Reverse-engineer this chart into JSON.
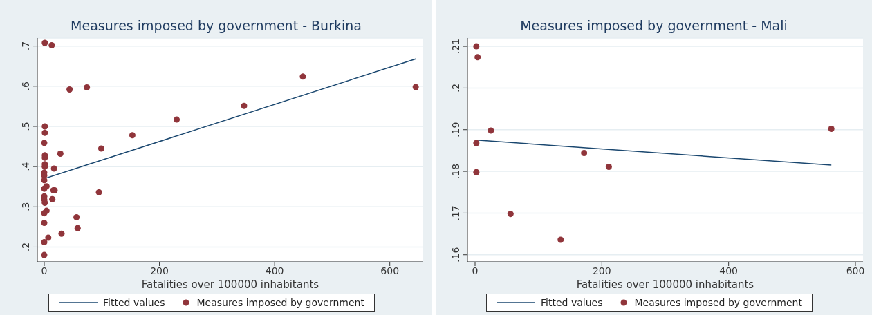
{
  "chart_data": [
    {
      "type": "scatter",
      "title": "Measures imposed by government - Burkina",
      "xlabel": "Fatalities over 100000 inhabitants",
      "xlim": [
        -12,
        658
      ],
      "xticks": [
        0,
        200,
        400,
        600
      ],
      "ylim": [
        0.163,
        0.72
      ],
      "yticks": [
        {
          "value": 0.2,
          "label": ".2"
        },
        {
          "value": 0.3,
          "label": ".3"
        },
        {
          "value": 0.4,
          "label": ".4"
        },
        {
          "value": 0.5,
          "label": ".5"
        },
        {
          "value": 0.6,
          "label": ".6"
        },
        {
          "value": 0.7,
          "label": ".7"
        }
      ],
      "grid": "y",
      "legend": "bottom",
      "series": [
        {
          "name": "Fitted values",
          "type": "line",
          "color": "#1a476f",
          "marker": "none",
          "x": [
            0,
            645
          ],
          "values": [
            0.37,
            0.668
          ]
        },
        {
          "name": "Measures imposed by government",
          "color": "#90353b",
          "marker": "circle",
          "x": [
            1,
            13,
            44,
            74,
            1,
            1,
            0,
            28,
            1,
            1,
            1,
            1,
            17,
            0,
            0,
            0,
            4,
            0,
            16,
            18,
            0,
            0,
            14,
            1,
            4,
            0,
            95,
            0,
            56,
            58,
            30,
            7,
            0,
            0,
            99,
            153,
            230,
            347,
            449,
            645
          ],
          "values": [
            0.708,
            0.702,
            0.592,
            0.597,
            0.5,
            0.484,
            0.459,
            0.432,
            0.428,
            0.422,
            0.406,
            0.4,
            0.395,
            0.385,
            0.378,
            0.366,
            0.351,
            0.345,
            0.341,
            0.341,
            0.326,
            0.318,
            0.319,
            0.31,
            0.29,
            0.284,
            0.336,
            0.26,
            0.274,
            0.247,
            0.233,
            0.223,
            0.212,
            0.18,
            0.445,
            0.478,
            0.517,
            0.551,
            0.624,
            0.598
          ]
        }
      ]
    },
    {
      "type": "scatter",
      "title": "Measures imposed by government - Mali",
      "xlabel": "Fatalities over 100000 inhabitants",
      "xlim": [
        -12,
        612
      ],
      "xticks": [
        0,
        200,
        400,
        600
      ],
      "ylim": [
        0.1583,
        0.212
      ],
      "yticks": [
        {
          "value": 0.16,
          "label": ".16"
        },
        {
          "value": 0.17,
          "label": ".17"
        },
        {
          "value": 0.18,
          "label": ".18"
        },
        {
          "value": 0.19,
          "label": ".19"
        },
        {
          "value": 0.2,
          "label": ".2"
        },
        {
          "value": 0.21,
          "label": ".21"
        }
      ],
      "grid": "y",
      "legend": "bottom",
      "series": [
        {
          "name": "Fitted values",
          "type": "line",
          "color": "#1a476f",
          "marker": "none",
          "x": [
            2,
            562
          ],
          "values": [
            0.1875,
            0.1815
          ]
        },
        {
          "name": "Measures imposed by government",
          "color": "#90353b",
          "marker": "circle",
          "x": [
            2,
            4,
            25,
            2,
            2,
            56,
            135,
            172,
            211,
            562
          ],
          "values": [
            0.21,
            0.2074,
            0.1898,
            0.1868,
            0.1798,
            0.1698,
            0.1636,
            0.1844,
            0.1811,
            0.1902
          ]
        }
      ]
    }
  ]
}
